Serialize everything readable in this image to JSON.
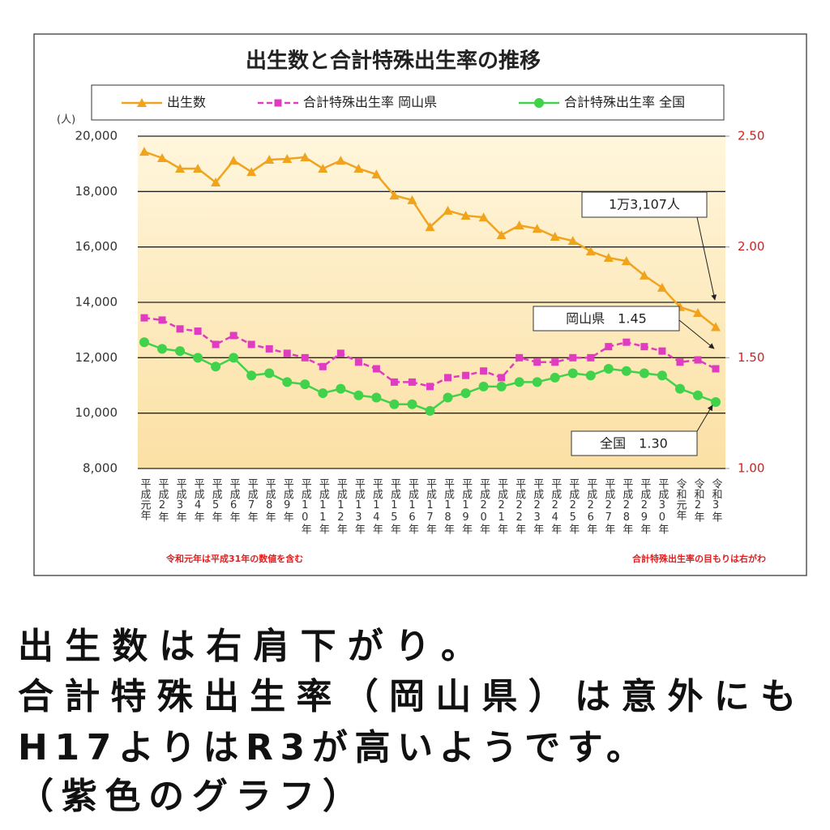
{
  "chart_data": {
    "type": "line",
    "title": "出生数と合計特殊出生率の推移",
    "y_unit": "(人)",
    "categories": [
      "平成元年",
      "平成2年",
      "平成3年",
      "平成4年",
      "平成5年",
      "平成6年",
      "平成7年",
      "平成8年",
      "平成9年",
      "平成10年",
      "平成11年",
      "平成12年",
      "平成13年",
      "平成14年",
      "平成15年",
      "平成16年",
      "平成17年",
      "平成18年",
      "平成19年",
      "平成20年",
      "平成21年",
      "平成22年",
      "平成23年",
      "平成24年",
      "平成25年",
      "平成26年",
      "平成27年",
      "平成28年",
      "平成29年",
      "平成30年",
      "令和元年",
      "令和2年",
      "令和3年"
    ],
    "series": [
      {
        "name": "出生数",
        "color": "#f0a41e",
        "marker": "triangle",
        "linestyle": "solid",
        "axis": "y",
        "values": [
          19440,
          19210,
          18830,
          18830,
          18330,
          19120,
          18710,
          19150,
          19180,
          19240,
          18830,
          19120,
          18830,
          18620,
          17860,
          17690,
          16720,
          17310,
          17130,
          17070,
          16430,
          16780,
          16660,
          16370,
          16220,
          15840,
          15610,
          15490,
          14970,
          14530,
          13830,
          13620,
          13107
        ]
      },
      {
        "name": "合計特殊出生率 岡山県",
        "color": "#e03cc0",
        "marker": "square",
        "linestyle": "dashed",
        "axis": "y2",
        "values": [
          1.68,
          1.67,
          1.63,
          1.62,
          1.56,
          1.6,
          1.56,
          1.54,
          1.52,
          1.5,
          1.46,
          1.52,
          1.48,
          1.45,
          1.39,
          1.39,
          1.37,
          1.41,
          1.42,
          1.44,
          1.41,
          1.5,
          1.48,
          1.48,
          1.5,
          1.5,
          1.55,
          1.57,
          1.55,
          1.53,
          1.48,
          1.49,
          1.45
        ]
      },
      {
        "name": "合計特殊出生率 全国",
        "color": "#3fd24a",
        "marker": "circle",
        "linestyle": "solid",
        "axis": "y2",
        "values": [
          1.57,
          1.54,
          1.53,
          1.5,
          1.46,
          1.5,
          1.42,
          1.43,
          1.39,
          1.38,
          1.34,
          1.36,
          1.33,
          1.32,
          1.29,
          1.29,
          1.26,
          1.32,
          1.34,
          1.37,
          1.37,
          1.39,
          1.39,
          1.41,
          1.43,
          1.42,
          1.45,
          1.44,
          1.43,
          1.42,
          1.36,
          1.33,
          1.3
        ]
      }
    ],
    "ylim": [
      8000,
      20000
    ],
    "yticks": [
      {
        "value": 8000,
        "label": "8,000"
      },
      {
        "value": 10000,
        "label": "10,000"
      },
      {
        "value": 12000,
        "label": "12,000"
      },
      {
        "value": 14000,
        "label": "14,000"
      },
      {
        "value": 16000,
        "label": "16,000"
      },
      {
        "value": 18000,
        "label": "18,000"
      },
      {
        "value": 20000,
        "label": "20,000"
      }
    ],
    "y2lim": [
      1.0,
      2.5
    ],
    "y2ticks": [
      {
        "value": 1.0,
        "label": "1.00"
      },
      {
        "value": 1.5,
        "label": "1.50"
      },
      {
        "value": 2.0,
        "label": "2.00"
      },
      {
        "value": 2.5,
        "label": "2.50"
      }
    ],
    "grid": true,
    "annotations": [
      "1万3,107人",
      "岡山県　1.45",
      "全国　1.30"
    ],
    "notes": [
      "令和元年は平成31年の数値を含む",
      "合計特殊出生率の目もりは右がわ"
    ]
  },
  "caption_lines": [
    "出生数は右肩下がり。",
    "合計特殊出生率（岡山県）は意外にも",
    "H17よりはR3が高いようです。",
    "（紫色のグラフ）"
  ]
}
